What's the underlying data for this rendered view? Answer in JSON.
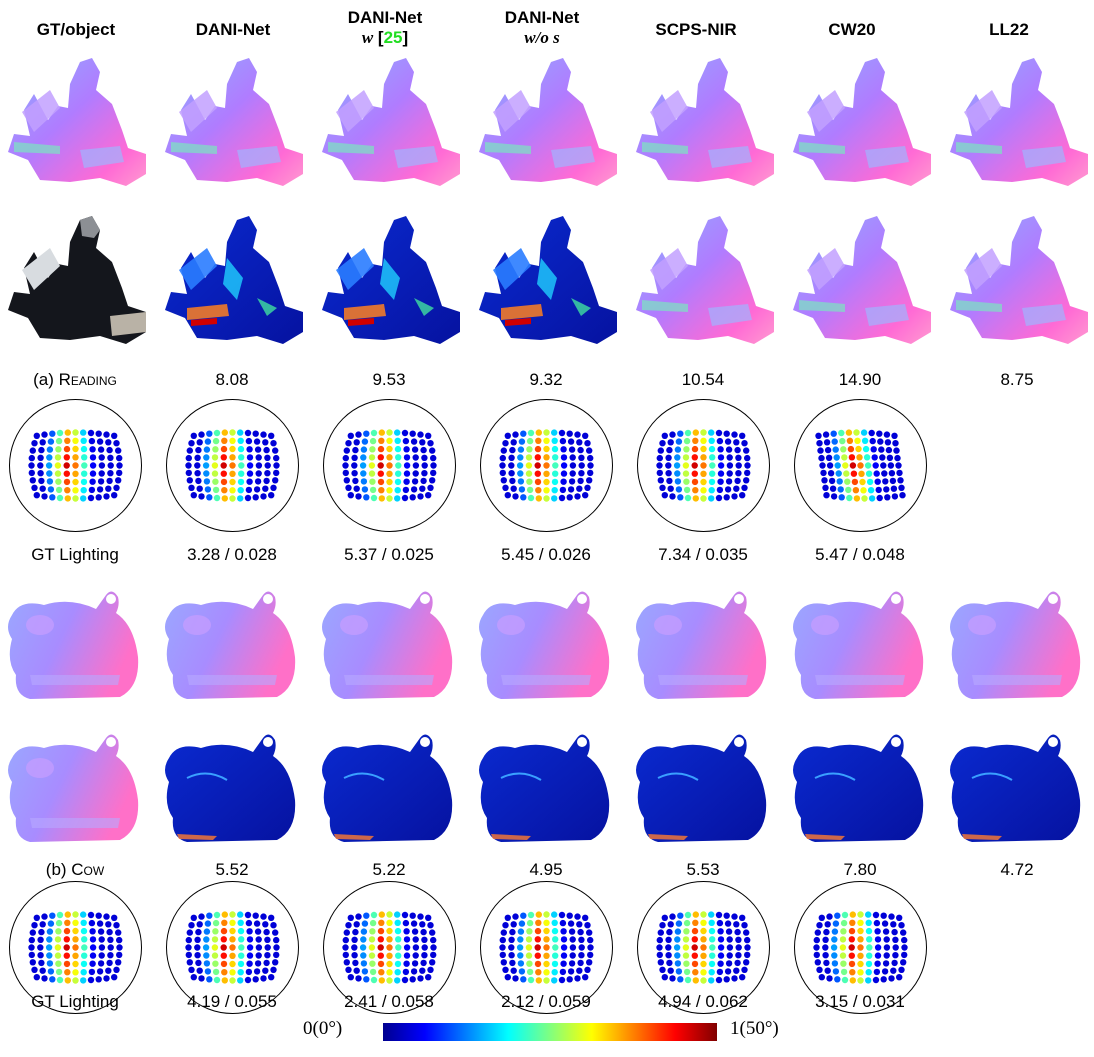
{
  "headers": [
    {
      "title": "GT/object",
      "sub": ""
    },
    {
      "title": "DANI-Net",
      "sub": ""
    },
    {
      "title": "DANI-Net",
      "sub": "w",
      "ref": "25"
    },
    {
      "title": "DANI-Net",
      "sub": "w/o s"
    },
    {
      "title": "SCPS-NIR",
      "sub": ""
    },
    {
      "title": "CW20",
      "sub": ""
    },
    {
      "title": "LL22",
      "sub": ""
    }
  ],
  "reading": {
    "caption_prefix": "(a) ",
    "caption_name": "Reading",
    "errors": [
      "8.08",
      "9.53",
      "9.32",
      "10.54",
      "14.90",
      "8.75"
    ],
    "lighting_label": "GT Lighting",
    "lighting_errors": [
      "3.28 / 0.028",
      "5.37 / 0.025",
      "5.45 / 0.026",
      "7.34 / 0.035",
      "5.47 / 0.048"
    ]
  },
  "cow": {
    "caption_prefix": "(b) ",
    "caption_name": "Cow",
    "errors": [
      "5.52",
      "5.22",
      "4.95",
      "5.53",
      "7.80",
      "4.72"
    ],
    "lighting_label": "GT Lighting",
    "lighting_errors": [
      "4.19 / 0.055",
      "2.41 / 0.058",
      "2.12 / 0.059",
      "4.94 / 0.062",
      "3.15 / 0.031"
    ]
  },
  "colorbar": {
    "min_label": "0(0°)",
    "max_label": "1(50°)"
  },
  "colors": {
    "normal_a": "#b27cff",
    "normal_b": "#ff6ad5",
    "normal_c": "#7be6c0",
    "err_bg": "#0a1aa8"
  }
}
